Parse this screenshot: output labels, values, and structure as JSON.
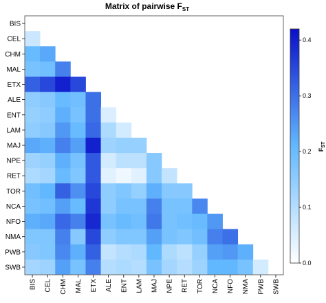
{
  "chart_data": {
    "type": "heatmap",
    "title_main": "Matrix of pairwise F",
    "title_sub": "ST",
    "rows": [
      "BIS",
      "CEL",
      "CHM",
      "MAL",
      "ETX",
      "ALE",
      "ENT",
      "LAM",
      "MAJ",
      "NPE",
      "RET",
      "TOR",
      "NCA",
      "NFO",
      "NMA",
      "PWB",
      "SWB"
    ],
    "columns": [
      "BIS",
      "CEL",
      "CHM",
      "MAL",
      "ETX",
      "ALE",
      "ENT",
      "LAM",
      "MAJ",
      "NPE",
      "RET",
      "TOR",
      "NCA",
      "NFO",
      "NMA",
      "PWB",
      "SWB"
    ],
    "values": [
      [],
      [
        0.07
      ],
      [
        0.2,
        0.23
      ],
      [
        0.18,
        0.19,
        0.28
      ],
      [
        0.32,
        0.35,
        0.4,
        0.35
      ],
      [
        0.15,
        0.16,
        0.2,
        0.19,
        0.3
      ],
      [
        0.14,
        0.15,
        0.22,
        0.18,
        0.3,
        0.05
      ],
      [
        0.15,
        0.16,
        0.25,
        0.2,
        0.31,
        0.11,
        0.06
      ],
      [
        0.23,
        0.22,
        0.28,
        0.24,
        0.4,
        0.13,
        0.14,
        0.14
      ],
      [
        0.13,
        0.14,
        0.22,
        0.18,
        0.33,
        0.06,
        0.09,
        0.09,
        0.16
      ],
      [
        0.11,
        0.12,
        0.2,
        0.17,
        0.33,
        0.04,
        0.02,
        0.04,
        0.16,
        0.08
      ],
      [
        0.19,
        0.21,
        0.32,
        0.26,
        0.35,
        0.15,
        0.17,
        0.14,
        0.22,
        0.16,
        0.16
      ],
      [
        0.18,
        0.19,
        0.24,
        0.2,
        0.37,
        0.15,
        0.18,
        0.18,
        0.28,
        0.18,
        0.18,
        0.27
      ],
      [
        0.22,
        0.23,
        0.31,
        0.28,
        0.39,
        0.18,
        0.2,
        0.19,
        0.29,
        0.18,
        0.19,
        0.2,
        0.25
      ],
      [
        0.17,
        0.17,
        0.28,
        0.16,
        0.35,
        0.15,
        0.17,
        0.17,
        0.24,
        0.18,
        0.17,
        0.19,
        0.28,
        0.3
      ],
      [
        0.16,
        0.17,
        0.27,
        0.22,
        0.32,
        0.08,
        0.1,
        0.11,
        0.21,
        0.11,
        0.09,
        0.14,
        0.24,
        0.25,
        0.22
      ],
      [
        0.12,
        0.13,
        0.24,
        0.18,
        0.28,
        0.1,
        0.11,
        0.1,
        0.18,
        0.12,
        0.1,
        0.13,
        0.21,
        0.21,
        0.18,
        0.06
      ]
    ],
    "colorbar": {
      "label_main": "F",
      "label_sub": "ST",
      "min": 0.0,
      "max": 0.42,
      "ticks": [
        "0.0",
        "0.1",
        "0.2",
        "0.3",
        "0.4"
      ],
      "tick_values": [
        0.0,
        0.1,
        0.2,
        0.3,
        0.4
      ]
    },
    "colors": {
      "low": "#ffffff",
      "mid": "#62b8ff",
      "high": "#0a10c8"
    }
  }
}
